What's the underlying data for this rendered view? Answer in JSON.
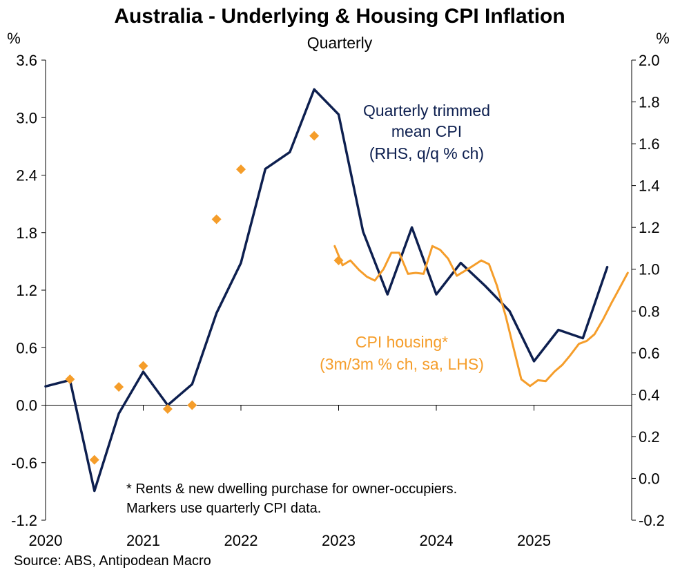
{
  "chart_data": {
    "type": "line",
    "title": "Australia - Underlying & Housing CPI Inflation",
    "subtitle": "Quarterly",
    "left_axis": {
      "unit": "%",
      "range": [
        -1.2,
        3.6
      ],
      "ticks": [
        -1.2,
        -0.6,
        0.0,
        0.6,
        1.2,
        1.8,
        2.4,
        3.0,
        3.6
      ],
      "tick_labels": [
        "-1.2",
        "-0.6",
        "0.0",
        "0.6",
        "1.2",
        "1.8",
        "2.4",
        "3.0",
        "3.6"
      ]
    },
    "right_axis": {
      "unit": "%",
      "range": [
        -0.2,
        2.0
      ],
      "ticks": [
        -0.2,
        0.0,
        0.2,
        0.4,
        0.6,
        0.8,
        1.0,
        1.2,
        1.4,
        1.6,
        1.8,
        2.0
      ],
      "tick_labels": [
        "-0.2",
        "0.0",
        "0.2",
        "0.4",
        "0.6",
        "0.8",
        "1.0",
        "1.2",
        "1.4",
        "1.6",
        "1.8",
        "2.0"
      ]
    },
    "x_axis": {
      "range": [
        2020.0,
        2026.0
      ],
      "ticks": [
        2020,
        2021,
        2022,
        2023,
        2024,
        2025
      ],
      "tick_labels": [
        "2020",
        "2021",
        "2022",
        "2023",
        "2024",
        "2025"
      ]
    },
    "series": [
      {
        "name": "Quarterly trimmed mean CPI (RHS, q/q % ch)",
        "axis": "right",
        "color": "#0d1f4f",
        "x": [
          2020.0,
          2020.25,
          2020.5,
          2020.75,
          2021.0,
          2021.25,
          2021.5,
          2021.75,
          2022.0,
          2022.25,
          2022.5,
          2022.75,
          2023.0,
          2023.25,
          2023.5,
          2023.75,
          2024.0,
          2024.25,
          2024.5,
          2024.75,
          2025.0,
          2025.25,
          2025.5,
          2025.75
        ],
        "values": [
          0.44,
          0.47,
          -0.06,
          0.31,
          0.51,
          0.35,
          0.45,
          0.79,
          1.03,
          1.48,
          1.56,
          1.86,
          1.74,
          1.18,
          0.88,
          1.2,
          0.88,
          1.03,
          0.92,
          0.8,
          0.56,
          0.71,
          0.67,
          1.01
        ]
      },
      {
        "name": "CPI housing* (3m/3m % ch, sa, LHS)",
        "axis": "left",
        "color": "#f59d2a",
        "x": [
          2022.96,
          2023.04,
          2023.12,
          2023.21,
          2023.29,
          2023.37,
          2023.46,
          2023.54,
          2023.62,
          2023.71,
          2023.79,
          2023.87,
          2023.96,
          2024.04,
          2024.12,
          2024.21,
          2024.29,
          2024.37,
          2024.46,
          2024.54,
          2024.62,
          2024.71,
          2024.79,
          2024.87,
          2024.96,
          2025.04,
          2025.12,
          2025.21,
          2025.29,
          2025.37,
          2025.46,
          2025.54,
          2025.62,
          2025.71,
          2025.79,
          2025.87,
          2025.96
        ],
        "values": [
          1.66,
          1.46,
          1.51,
          1.41,
          1.34,
          1.3,
          1.42,
          1.59,
          1.59,
          1.37,
          1.38,
          1.37,
          1.66,
          1.62,
          1.53,
          1.35,
          1.4,
          1.45,
          1.51,
          1.47,
          1.25,
          0.93,
          0.6,
          0.27,
          0.2,
          0.26,
          0.25,
          0.35,
          0.42,
          0.52,
          0.64,
          0.67,
          0.74,
          0.9,
          1.06,
          1.21,
          1.38
        ]
      },
      {
        "name": "CPI housing markers (quarterly CPI data)",
        "axis": "left",
        "type": "scatter",
        "color": "#f59d2a",
        "x": [
          2020.25,
          2020.5,
          2020.75,
          2021.0,
          2021.25,
          2021.5,
          2021.75,
          2022.0,
          2022.75,
          2023.0
        ],
        "values": [
          0.27,
          -0.57,
          0.19,
          0.41,
          -0.04,
          0.0,
          1.94,
          2.46,
          2.81,
          1.51
        ]
      }
    ],
    "annotations": {
      "trimmed_mean": [
        "Quarterly trimmed",
        "mean CPI",
        "(RHS, q/q % ch)"
      ],
      "housing": [
        "CPI housing*",
        "(3m/3m % ch, sa, LHS)"
      ]
    },
    "footnote": [
      "* Rents & new dwelling purchase for owner-occupiers.",
      "Markers use quarterly CPI data."
    ],
    "source": "Source: ABS, Antipodean Macro"
  }
}
